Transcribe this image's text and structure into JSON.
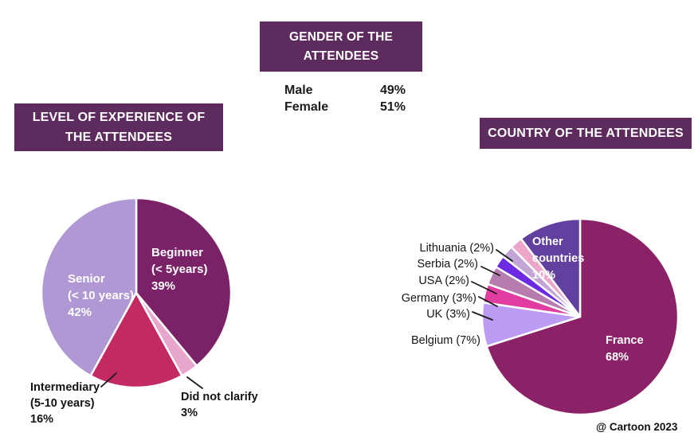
{
  "theme": {
    "header_bg": "#5e2b5f",
    "header_text": "#ffffff",
    "body_text": "#1a1a1a"
  },
  "gender": {
    "title_line1": "GENDER OF THE",
    "title_line2": "ATTENDEES",
    "rows": [
      {
        "label": "Male",
        "value": "49%"
      },
      {
        "label": "Female",
        "value": "51%"
      }
    ]
  },
  "experience": {
    "title_line1": "LEVEL OF EXPERIENCE OF",
    "title_line2": "THE ATTENDEES",
    "labels": {
      "beginner": [
        "Beginner",
        "(< 5years)",
        "39%"
      ],
      "senior": [
        "Senior",
        "(< 10 years)",
        "42%"
      ],
      "intermediary": [
        "Intermediary",
        "(5-10 years)",
        "16%"
      ],
      "did_not_clarify": [
        "Did not clarify",
        "3%"
      ]
    }
  },
  "country": {
    "title": "COUNTRY OF THE ATTENDEES",
    "labels": {
      "other": [
        "Other",
        "countries",
        "10%"
      ],
      "france": [
        "France",
        "68%"
      ],
      "lithuania": "Lithuania (2%)",
      "serbia": "Serbia (2%)",
      "usa": "USA (2%)",
      "germany": "Germany (3%)",
      "uk": "UK (3%)",
      "belgium": "Belgium (7%)"
    }
  },
  "credit": "@ Cartoon 2023",
  "chart_data": [
    {
      "type": "table",
      "title": "GENDER OF THE ATTENDEES",
      "categories": [
        "Male",
        "Female"
      ],
      "values": [
        49,
        51
      ],
      "unit": "%"
    },
    {
      "type": "pie",
      "title": "LEVEL OF EXPERIENCE OF THE ATTENDEES",
      "categories": [
        "Beginner (< 5years)",
        "Did not clarify",
        "Intermediary (5-10 years)",
        "Senior (< 10 years)"
      ],
      "values": [
        39,
        3,
        16,
        42
      ],
      "unit": "%",
      "colors": [
        "#7a2168",
        "#e9a6cc",
        "#c32a64",
        "#b098d4"
      ],
      "start_angle": "top",
      "direction": "clockwise",
      "label_color_inside": "#ffffff",
      "label_color_outside": "#141414"
    },
    {
      "type": "pie",
      "title": "COUNTRY OF THE ATTENDEES",
      "categories": [
        "France",
        "Belgium",
        "UK",
        "Germany",
        "USA",
        "Serbia",
        "Lithuania",
        "Other countries"
      ],
      "values": [
        68,
        7,
        3,
        3,
        2,
        2,
        2,
        10
      ],
      "unit": "%",
      "colors": [
        "#8b2167",
        "#bc9cf3",
        "#e13ca0",
        "#b67cae",
        "#6c2ae2",
        "#c2a4d5",
        "#eca6ca",
        "#61409f"
      ],
      "start_angle": "top",
      "direction": "clockwise",
      "label_color_inside": "#ffffff",
      "label_color_outside": "#171717"
    }
  ]
}
